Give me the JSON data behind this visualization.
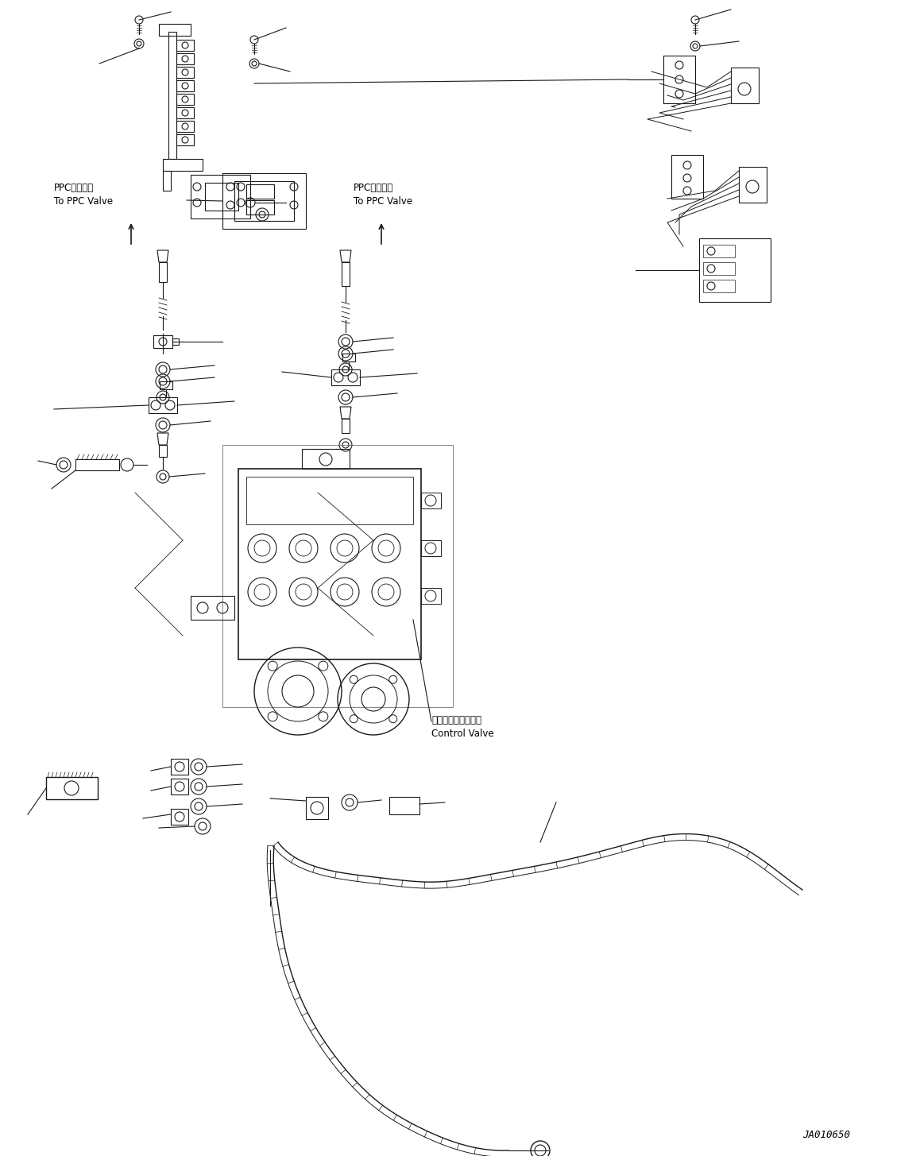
{
  "figure_width": 11.58,
  "figure_height": 14.55,
  "dpi": 100,
  "bg_color": "#ffffff",
  "line_color": "#1a1a1a",
  "line_width": 0.8,
  "text_color": "#000000",
  "font_size_label": 8.5,
  "font_size_code": 9,
  "watermark": "JA010650",
  "ppc_label_1": "PPCバルブへ\nTo PPC Valve",
  "ppc_label_2": "PPCバルブへ\nTo PPC Valve",
  "cv_label": "コントロールバルブ\nControl Valve"
}
